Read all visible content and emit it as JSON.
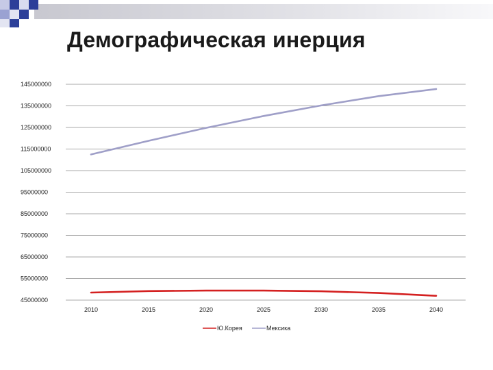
{
  "slide": {
    "title": "Демографическая инерция"
  },
  "colors": {
    "header_band": "#d6d6dc",
    "square_dark": "#2c3f99",
    "square_light": "#9aa2d2",
    "gridline": "#8c8c8c"
  },
  "chart_data": {
    "type": "line",
    "x": [
      2010,
      2015,
      2020,
      2025,
      2030,
      2035,
      2040
    ],
    "xticks": [
      "2010",
      "2015",
      "2020",
      "2025",
      "2030",
      "2035",
      "2040"
    ],
    "yticks": [
      "145000000",
      "135000000",
      "125000000",
      "115000000",
      "105000000",
      "95000000",
      "85000000",
      "75000000",
      "65000000",
      "55000000",
      "45000000"
    ],
    "ylim": [
      45000000,
      145000000
    ],
    "grid": true,
    "legend_position": "bottom",
    "series": [
      {
        "name": "Ю.Корея",
        "color": "#d42020",
        "values": [
          48500000,
          49200000,
          49400000,
          49400000,
          49100000,
          48300000,
          47000000
        ]
      },
      {
        "name": "Мексика",
        "color": "#9f9fc8",
        "values": [
          112500000,
          118800000,
          124800000,
          130300000,
          135200000,
          139500000,
          142800000
        ]
      }
    ]
  }
}
